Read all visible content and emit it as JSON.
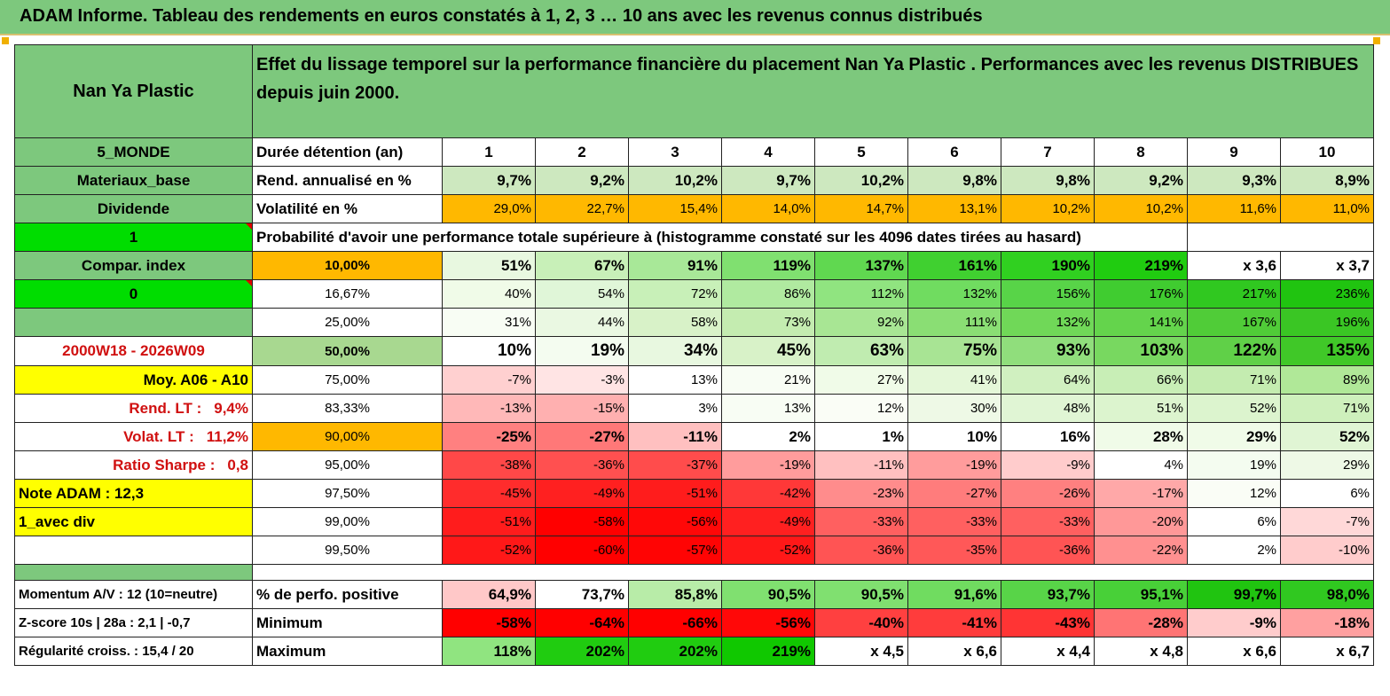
{
  "title": "ADAM Informe. Tableau des rendements en euros constatés à 1, 2, 3 … 10 ans avec les revenus connus distribués",
  "header": {
    "name": "Nan Ya Plastic",
    "description": "Effet du lissage temporel sur la performance financière du placement Nan Ya Plastic . Performances avec les revenus DISTRIBUES depuis juin 2000."
  },
  "colors": {
    "header_green": "#7dc87d",
    "orange": "#ffb800",
    "yellow": "#ffff00",
    "bright_green": "#00dd00",
    "red_text": "#d01010"
  },
  "rows": [
    {
      "label": "5_MONDE",
      "row_label": "Durée détention (an)",
      "cells": [
        "1",
        "2",
        "3",
        "4",
        "5",
        "6",
        "7",
        "8",
        "9",
        "10"
      ],
      "bg": [
        "#ffffff",
        "#ffffff",
        "#ffffff",
        "#ffffff",
        "#ffffff",
        "#ffffff",
        "#ffffff",
        "#ffffff",
        "#ffffff",
        "#ffffff"
      ]
    },
    {
      "label": "Materiaux_base",
      "row_label": "Rend. annualisé en %",
      "cells": [
        "9,7%",
        "9,2%",
        "10,2%",
        "9,7%",
        "10,2%",
        "9,8%",
        "9,8%",
        "9,2%",
        "9,3%",
        "8,9%"
      ],
      "bg": [
        "#cde8bf",
        "#cde8bf",
        "#cde8bf",
        "#cde8bf",
        "#cde8bf",
        "#cde8bf",
        "#cde8bf",
        "#cde8bf",
        "#cde8bf",
        "#cde8bf"
      ]
    },
    {
      "label": "Dividende",
      "row_label": "Volatilité en %",
      "cells": [
        "29,0%",
        "22,7%",
        "15,4%",
        "14,0%",
        "14,7%",
        "13,1%",
        "10,2%",
        "10,2%",
        "11,6%",
        "11,0%"
      ],
      "bg": [
        "#ffb800",
        "#ffb800",
        "#ffb800",
        "#ffb800",
        "#ffb800",
        "#ffb800",
        "#ffb800",
        "#ffb800",
        "#ffb800",
        "#ffb800"
      ]
    },
    {
      "label": "1",
      "prob_text": "Probabilité d'avoir une performance totale supérieure à (histogramme constaté sur les 4096 dates tirées au hasard)"
    },
    {
      "label": "Compar. index",
      "row_label": "10,00%",
      "cells": [
        "51%",
        "67%",
        "91%",
        "119%",
        "137%",
        "161%",
        "190%",
        "219%",
        "x 3,6",
        "x 3,7"
      ],
      "bg": [
        "#e8f8e0",
        "#c8f0b8",
        "#a8e898",
        "#80e070",
        "#60d850",
        "#40d030",
        "#30d020",
        "#20cc10",
        "#ffffff",
        "#ffffff"
      ]
    },
    {
      "label": "0",
      "row_label": "16,67%",
      "cells": [
        "40%",
        "54%",
        "72%",
        "86%",
        "112%",
        "132%",
        "156%",
        "176%",
        "217%",
        "236%"
      ],
      "bg": [
        "#f0fbe8",
        "#e0f6d8",
        "#c8f0b8",
        "#b0eaa0",
        "#90e480",
        "#70dc60",
        "#58d448",
        "#40cc30",
        "#30c820",
        "#20c410"
      ]
    },
    {
      "label": "",
      "row_label": "25,00%",
      "cells": [
        "31%",
        "44%",
        "58%",
        "73%",
        "92%",
        "111%",
        "132%",
        "141%",
        "167%",
        "196%"
      ],
      "bg": [
        "#f8fdf4",
        "#eaf8e2",
        "#d8f2c8",
        "#c4ecb0",
        "#a8e694",
        "#8ade74",
        "#70d858",
        "#64d44c",
        "#50cc38",
        "#3ac624"
      ]
    },
    {
      "label": "2000W18 - 2026W09",
      "row_label": "50,00%",
      "cells": [
        "10%",
        "19%",
        "34%",
        "45%",
        "63%",
        "75%",
        "93%",
        "103%",
        "122%",
        "135%"
      ],
      "bg": [
        "#ffffff",
        "#f4fcf0",
        "#e8f8e0",
        "#d8f2c8",
        "#c0ecb0",
        "#a8e494",
        "#90de7c",
        "#78d860",
        "#60d048",
        "#40c828"
      ]
    },
    {
      "label": "Moy. A06 - A10",
      "row_label": "75,00%",
      "cells": [
        "-7%",
        "-3%",
        "13%",
        "21%",
        "27%",
        "41%",
        "64%",
        "66%",
        "71%",
        "89%"
      ],
      "bg": [
        "#ffd0d0",
        "#ffe4e4",
        "#ffffff",
        "#f8fdf4",
        "#f0fbe8",
        "#e4f7d8",
        "#d0f0c0",
        "#c8eeb6",
        "#c4ecb0",
        "#b0e898"
      ]
    },
    {
      "label": "Rend. LT :",
      "label_value": "9,4%",
      "row_label": "83,33%",
      "cells": [
        "-13%",
        "-15%",
        "3%",
        "13%",
        "12%",
        "30%",
        "48%",
        "51%",
        "52%",
        "71%"
      ],
      "bg": [
        "#ffb8b8",
        "#ffb0b0",
        "#ffffff",
        "#f8fdf4",
        "#fafdf6",
        "#eef9e6",
        "#e0f5d4",
        "#dcf4ce",
        "#dcf4ce",
        "#cef0bc"
      ]
    },
    {
      "label": "Volat. LT :",
      "label_value": "11,2%",
      "row_label": "90,00%",
      "cells": [
        "-25%",
        "-27%",
        "-11%",
        "2%",
        "1%",
        "10%",
        "16%",
        "28%",
        "29%",
        "52%"
      ],
      "bg": [
        "#ff8080",
        "#ff7878",
        "#ffc0c0",
        "#ffffff",
        "#ffffff",
        "#ffffff",
        "#ffffff",
        "#f0fbe8",
        "#f0fbe8",
        "#e0f5d4"
      ]
    },
    {
      "label": "Ratio Sharpe :",
      "label_value": "0,8",
      "row_label": "95,00%",
      "cells": [
        "-38%",
        "-36%",
        "-37%",
        "-19%",
        "-11%",
        "-19%",
        "-9%",
        "4%",
        "19%",
        "29%"
      ],
      "bg": [
        "#ff4848",
        "#ff5050",
        "#ff4c4c",
        "#ff9c9c",
        "#ffc0c0",
        "#ff9c9c",
        "#ffcccc",
        "#ffffff",
        "#f4fcf0",
        "#eef9e6"
      ]
    },
    {
      "label": "Note ADAM : 12,3",
      "row_label": "97,50%",
      "cells": [
        "-45%",
        "-49%",
        "-51%",
        "-42%",
        "-23%",
        "-27%",
        "-26%",
        "-17%",
        "12%",
        "6%"
      ],
      "bg": [
        "#ff2c2c",
        "#ff2020",
        "#ff1c1c",
        "#ff3838",
        "#ff8c8c",
        "#ff7c7c",
        "#ff8080",
        "#ffa8a8",
        "#fafdf6",
        "#ffffff"
      ]
    },
    {
      "label": "1_avec div",
      "row_label": "99,00%",
      "cells": [
        "-51%",
        "-58%",
        "-56%",
        "-49%",
        "-33%",
        "-33%",
        "-33%",
        "-20%",
        "6%",
        "-7%"
      ],
      "bg": [
        "#ff1c1c",
        "#ff0000",
        "#ff0808",
        "#ff2020",
        "#ff6060",
        "#ff6060",
        "#ff6060",
        "#ff9898",
        "#ffffff",
        "#ffd8d8"
      ]
    },
    {
      "label": "",
      "row_label": "99,50%",
      "cells": [
        "-52%",
        "-60%",
        "-57%",
        "-52%",
        "-36%",
        "-35%",
        "-36%",
        "-22%",
        "2%",
        "-10%"
      ],
      "bg": [
        "#ff1818",
        "#ff0000",
        "#ff0404",
        "#ff1818",
        "#ff5454",
        "#ff5858",
        "#ff5454",
        "#ff9090",
        "#ffffff",
        "#ffcccc"
      ]
    },
    {
      "label": "Momentum A/V : 12 (10=neutre)",
      "row_label": "% de perfo. positive",
      "cells": [
        "64,9%",
        "73,7%",
        "85,8%",
        "90,5%",
        "90,5%",
        "91,6%",
        "93,7%",
        "95,1%",
        "99,7%",
        "98,0%"
      ],
      "bg": [
        "#ffc8c8",
        "#ffffff",
        "#b8eca8",
        "#80e070",
        "#80e070",
        "#70dc60",
        "#58d448",
        "#48d038",
        "#20c410",
        "#30c820"
      ]
    },
    {
      "label": "Z-score 10s | 28a : 2,1 | -0,7",
      "row_label": "Minimum",
      "cells": [
        "-58%",
        "-64%",
        "-66%",
        "-56%",
        "-40%",
        "-41%",
        "-43%",
        "-28%",
        "-9%",
        "-18%"
      ],
      "bg": [
        "#ff0000",
        "#ff0000",
        "#ff0000",
        "#ff0808",
        "#ff4040",
        "#ff3c3c",
        "#ff3434",
        "#ff7474",
        "#ffcccc",
        "#ffa0a0"
      ]
    },
    {
      "label": "Régularité croiss. : 15,4 / 20",
      "row_label": "Maximum",
      "cells": [
        "118%",
        "202%",
        "202%",
        "219%",
        "x 4,5",
        "x 6,6",
        "x 4,4",
        "x 4,8",
        "x 6,6",
        "x 6,7"
      ],
      "bg": [
        "#90e480",
        "#20cc10",
        "#20cc10",
        "#10c800",
        "#ffffff",
        "#ffffff",
        "#ffffff",
        "#ffffff",
        "#ffffff",
        "#ffffff"
      ]
    }
  ]
}
